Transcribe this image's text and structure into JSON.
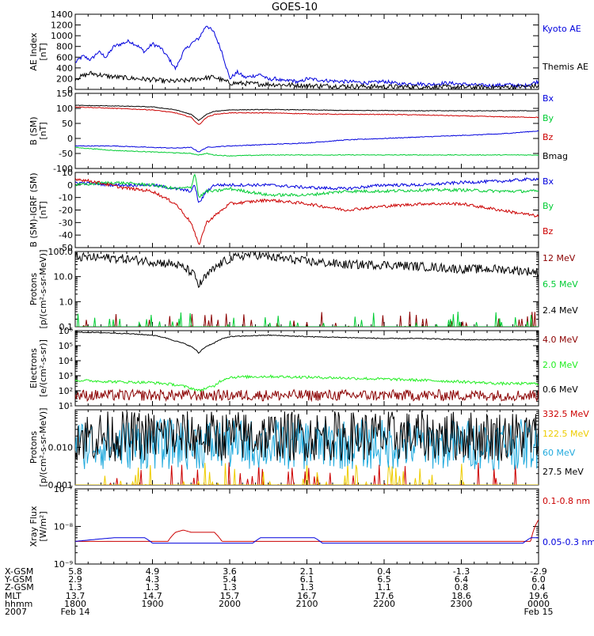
{
  "title": "GOES-10",
  "colors": {
    "black": "#000000",
    "blue": "#0000dd",
    "red": "#cc0000",
    "darkred": "#8b0000",
    "green": "#00cc33",
    "lime": "#22ee22",
    "yellow": "#eecc00",
    "cyan": "#22aadd"
  },
  "chart_data": [
    {
      "type": "line",
      "panel": "ae",
      "ylabel_lines": [
        "AE Index",
        "[nT]"
      ],
      "ylim": [
        0,
        1400
      ],
      "yticks": [
        0,
        200,
        400,
        600,
        800,
        1000,
        1200,
        1400
      ],
      "series": [
        {
          "name": "Kyoto AE",
          "color": "blue",
          "x": [
            18.0,
            18.1,
            18.2,
            18.3,
            18.4,
            18.5,
            18.6,
            18.7,
            18.8,
            18.9,
            19.0,
            19.1,
            19.2,
            19.3,
            19.4,
            19.5,
            19.6,
            19.7,
            19.8,
            19.9,
            20.0,
            20.1,
            20.2,
            20.3,
            20.4,
            20.5,
            20.6,
            20.7,
            20.8,
            20.9,
            21.0,
            21.2,
            21.4,
            21.6,
            21.8,
            22.0,
            22.2,
            22.4,
            22.6,
            22.8,
            23.0,
            23.2,
            23.4,
            23.6,
            23.8,
            24.0
          ],
          "y": [
            500,
            620,
            550,
            700,
            600,
            800,
            850,
            900,
            820,
            700,
            850,
            780,
            600,
            380,
            700,
            850,
            950,
            1200,
            1050,
            700,
            200,
            320,
            220,
            250,
            280,
            180,
            200,
            150,
            170,
            130,
            200,
            170,
            150,
            140,
            120,
            150,
            100,
            110,
            90,
            120,
            100,
            80,
            70,
            90,
            60,
            150
          ]
        },
        {
          "name": "Themis AE",
          "color": "black",
          "x": [
            18.0,
            18.2,
            18.4,
            18.6,
            18.8,
            19.0,
            19.2,
            19.4,
            19.6,
            19.8,
            20.0,
            20.2,
            20.4,
            20.6,
            20.8,
            21.0,
            21.5,
            22.0,
            22.5,
            23.0,
            23.5,
            24.0
          ],
          "y": [
            200,
            300,
            250,
            220,
            200,
            180,
            150,
            160,
            200,
            230,
            120,
            110,
            100,
            90,
            80,
            70,
            60,
            50,
            45,
            40,
            40,
            60
          ]
        }
      ],
      "legend": [
        "Kyoto AE",
        "Themis AE"
      ]
    },
    {
      "type": "line",
      "panel": "bsm",
      "ylabel_lines": [
        "B (SM)",
        "[nT]"
      ],
      "ylim": [
        -100,
        150
      ],
      "yticks": [
        -100,
        -50,
        0,
        50,
        100,
        150
      ],
      "series": [
        {
          "name": "Bx",
          "color": "blue",
          "x": [
            18.0,
            18.5,
            19.0,
            19.3,
            19.5,
            19.6,
            19.7,
            19.8,
            20.0,
            20.5,
            21.0,
            21.5,
            22.0,
            22.5,
            23.0,
            23.5,
            24.0
          ],
          "y": [
            -25,
            -25,
            -30,
            -32,
            -30,
            -45,
            -30,
            -28,
            -25,
            -20,
            -15,
            -5,
            0,
            5,
            10,
            15,
            25
          ]
        },
        {
          "name": "By",
          "color": "green",
          "x": [
            18.0,
            18.5,
            19.0,
            19.3,
            19.5,
            19.6,
            19.7,
            19.8,
            20.0,
            20.5,
            21.0,
            21.5,
            22.0,
            22.5,
            23.0,
            23.5,
            24.0
          ],
          "y": [
            -30,
            -40,
            -45,
            -48,
            -50,
            -55,
            -50,
            -55,
            -58,
            -55,
            -55,
            -55,
            -55,
            -55,
            -55,
            -55,
            -55
          ]
        },
        {
          "name": "Bz",
          "color": "red",
          "x": [
            18.0,
            18.5,
            19.0,
            19.3,
            19.5,
            19.6,
            19.7,
            19.8,
            20.0,
            20.5,
            21.0,
            21.5,
            22.0,
            22.5,
            23.0,
            23.5,
            24.0
          ],
          "y": [
            105,
            100,
            95,
            85,
            70,
            45,
            70,
            80,
            85,
            85,
            82,
            80,
            80,
            78,
            75,
            72,
            70
          ]
        },
        {
          "name": "Bmag",
          "color": "black",
          "x": [
            18.0,
            18.5,
            19.0,
            19.3,
            19.5,
            19.6,
            19.7,
            19.8,
            20.0,
            20.5,
            21.0,
            21.5,
            22.0,
            22.5,
            23.0,
            23.5,
            24.0
          ],
          "y": [
            110,
            108,
            105,
            95,
            80,
            60,
            80,
            90,
            95,
            96,
            95,
            93,
            93,
            92,
            92,
            92,
            92
          ]
        }
      ],
      "legend": [
        "Bx",
        "By",
        "Bz",
        "Bmag"
      ]
    },
    {
      "type": "line",
      "panel": "diff",
      "ylabel_lines": [
        "B (SM)-IGRF (SM)",
        "[nT]"
      ],
      "ylim": [
        -50,
        10
      ],
      "yticks": [
        -50,
        -40,
        -30,
        -20,
        -10,
        0,
        10
      ],
      "series": [
        {
          "name": "Bx",
          "color": "blue",
          "x": [
            18.0,
            18.5,
            19.0,
            19.3,
            19.5,
            19.55,
            19.6,
            19.7,
            19.8,
            20.0,
            20.5,
            21.0,
            21.5,
            22.0,
            22.5,
            23.0,
            23.5,
            24.0
          ],
          "y": [
            2,
            0,
            0,
            -3,
            -5,
            0,
            -15,
            -5,
            0,
            0,
            0,
            -2,
            -3,
            0,
            0,
            2,
            3,
            5
          ]
        },
        {
          "name": "By",
          "color": "green",
          "x": [
            18.0,
            18.5,
            19.0,
            19.3,
            19.5,
            19.55,
            19.6,
            19.7,
            19.8,
            20.0,
            20.5,
            21.0,
            21.5,
            22.0,
            22.5,
            23.0,
            23.5,
            24.0
          ],
          "y": [
            0,
            2,
            0,
            -3,
            -2,
            10,
            -10,
            -5,
            -5,
            -3,
            -8,
            -8,
            -5,
            -5,
            -4,
            -4,
            -5,
            -5
          ]
        },
        {
          "name": "Bz",
          "color": "red",
          "x": [
            18.0,
            18.3,
            18.6,
            19.0,
            19.3,
            19.5,
            19.6,
            19.7,
            19.8,
            20.0,
            20.5,
            21.0,
            21.5,
            22.0,
            22.5,
            23.0,
            23.5,
            24.0
          ],
          "y": [
            5,
            2,
            -2,
            -5,
            -15,
            -30,
            -48,
            -30,
            -25,
            -15,
            -12,
            -15,
            -20,
            -17,
            -15,
            -15,
            -20,
            -25
          ]
        }
      ],
      "legend": [
        "Bx",
        "By",
        "Bz"
      ]
    },
    {
      "type": "line",
      "panel": "protons_low",
      "scale": "log",
      "ylabel_lines": [
        "Protons",
        "[p/(cm²-s-sr-MeV)]"
      ],
      "ylim": [
        0.1,
        100
      ],
      "ytick_labels": [
        "0.1",
        "1.0",
        "10.0",
        "100.0"
      ],
      "yticks": [
        0.1,
        1,
        10,
        100
      ],
      "series": [
        {
          "name": "12 MeV",
          "color": "darkred",
          "x": [
            18.0,
            24.0
          ],
          "y": [
            0.1,
            0.1
          ]
        },
        {
          "name": "6.5 MeV",
          "color": "green",
          "x": [
            18.0,
            24.0
          ],
          "y": [
            0.1,
            0.1
          ]
        },
        {
          "name": "2.4 MeV",
          "color": "black",
          "x": [
            18.0,
            18.5,
            19.0,
            19.3,
            19.5,
            19.55,
            19.6,
            19.7,
            19.8,
            20.0,
            20.3,
            20.5,
            21.0,
            21.5,
            22.0,
            22.5,
            23.0,
            23.5,
            24.0
          ],
          "y": [
            60,
            55,
            40,
            30,
            15,
            10,
            4,
            10,
            20,
            50,
            80,
            60,
            40,
            30,
            30,
            25,
            20,
            20,
            15
          ]
        }
      ],
      "legend": [
        "12 MeV",
        "6.5 MeV",
        "2.4 MeV"
      ]
    },
    {
      "type": "line",
      "panel": "electrons",
      "scale": "log",
      "ylabel_lines": [
        "Electrons",
        "[e/(cm²-s-sr)]"
      ],
      "ylim": [
        10,
        1000000
      ],
      "ytick_labels": [
        "10¹",
        "10²",
        "10³",
        "10⁴",
        "10⁵",
        "10⁶"
      ],
      "yticks": [
        10,
        100,
        1000,
        10000,
        100000,
        1000000
      ],
      "series": [
        {
          "name": "4.0 MeV",
          "color": "darkred",
          "x": [
            18.0,
            19.0,
            20.0,
            21.0,
            22.0,
            23.0,
            24.0
          ],
          "y": [
            50,
            50,
            50,
            50,
            50,
            50,
            50
          ]
        },
        {
          "name": "2.0 MeV",
          "color": "lime",
          "x": [
            18.0,
            18.5,
            19.0,
            19.3,
            19.6,
            19.8,
            20.0,
            20.5,
            21.0,
            21.5,
            22.0,
            22.5,
            23.0,
            23.5,
            24.0
          ],
          "y": [
            500,
            400,
            350,
            250,
            100,
            200,
            800,
            900,
            800,
            700,
            600,
            500,
            400,
            300,
            300
          ]
        },
        {
          "name": "0.6 MeV",
          "color": "black",
          "x": [
            18.0,
            18.5,
            19.0,
            19.3,
            19.6,
            19.8,
            20.0,
            20.5,
            21.0,
            21.5,
            22.0,
            22.5,
            23.0,
            23.5,
            24.0
          ],
          "y": [
            800000,
            700000,
            500000,
            200000,
            30000,
            150000,
            400000,
            500000,
            400000,
            350000,
            300000,
            300000,
            250000,
            250000,
            250000
          ]
        }
      ],
      "legend": [
        "4.0 MeV",
        "2.0 MeV",
        "0.6 MeV"
      ]
    },
    {
      "type": "line",
      "panel": "protons_high",
      "scale": "log",
      "ylabel_lines": [
        "Protons",
        "[p/(cm²-s-sr-MeV)]"
      ],
      "ylim": [
        0.001,
        0.1
      ],
      "ytick_labels": [
        "0.001",
        "0.010"
      ],
      "yticks": [
        0.001,
        0.01
      ],
      "series": [
        {
          "name": "332.5 MeV",
          "color": "red",
          "x": [
            18.0,
            24.0
          ],
          "y": [
            0.001,
            0.001
          ]
        },
        {
          "name": "122.5 MeV",
          "color": "yellow",
          "x": [
            18.0,
            24.0
          ],
          "y": [
            0.001,
            0.001
          ]
        },
        {
          "name": "60 MeV",
          "color": "cyan",
          "x": [
            18.0,
            24.0
          ],
          "y": [
            0.012,
            0.012
          ]
        },
        {
          "name": "27.5 MeV",
          "color": "black",
          "x": [
            18.0,
            24.0
          ],
          "y": [
            0.02,
            0.02
          ]
        }
      ],
      "legend": [
        "332.5 MeV",
        "122.5 MeV",
        "60 MeV",
        "27.5 MeV"
      ]
    },
    {
      "type": "line",
      "panel": "xray",
      "scale": "log",
      "ylabel_lines": [
        "Xray Flux",
        "[W/m²]"
      ],
      "ylim": [
        1e-09,
        1e-07
      ],
      "ytick_labels": [
        "10⁻⁹",
        "10⁻⁸",
        "10⁻⁷"
      ],
      "yticks": [
        1e-09,
        1e-08,
        1e-07
      ],
      "series": [
        {
          "name": "0.1-0.8 nm",
          "color": "red",
          "x": [
            18.0,
            18.5,
            19.0,
            19.2,
            19.3,
            19.4,
            19.5,
            19.8,
            19.9,
            20.0,
            21.0,
            22.0,
            23.0,
            23.5,
            23.9,
            24.0
          ],
          "y": [
            4e-09,
            4e-09,
            4e-09,
            4e-09,
            7e-09,
            8e-09,
            7e-09,
            7e-09,
            4e-09,
            4e-09,
            4e-09,
            4e-09,
            4e-09,
            4e-09,
            4e-09,
            1.5e-08
          ]
        },
        {
          "name": "0.05-0.3 nm",
          "color": "blue",
          "x": [
            18.0,
            18.5,
            18.9,
            19.0,
            19.5,
            19.9,
            20.0,
            20.3,
            20.4,
            21.0,
            21.1,
            21.2,
            22.0,
            23.0,
            23.8,
            23.9,
            24.0
          ],
          "y": [
            4e-09,
            5e-09,
            5e-09,
            3.6e-09,
            3.6e-09,
            3.6e-09,
            3.6e-09,
            3.6e-09,
            5e-09,
            5e-09,
            5e-09,
            3.6e-09,
            3.6e-09,
            3.6e-09,
            3.6e-09,
            5e-09,
            5e-09
          ]
        }
      ],
      "legend": [
        "0.1-0.8 nm",
        "0.05-0.3 nm"
      ]
    }
  ],
  "x_axis": {
    "ticks": [
      18,
      19,
      20,
      21,
      22,
      23,
      24
    ],
    "rows": [
      {
        "label": "X-GSM",
        "values": [
          "5.8",
          "4.9",
          "3.6",
          "2.1",
          "0.4",
          "-1.3",
          "-2.9"
        ]
      },
      {
        "label": "Y-GSM",
        "values": [
          "2.9",
          "4.3",
          "5.4",
          "6.1",
          "6.5",
          "6.4",
          "6.0"
        ]
      },
      {
        "label": "Z-GSM",
        "values": [
          "1.3",
          "1.3",
          "1.3",
          "1.3",
          "1.1",
          "0.8",
          "0.4"
        ]
      },
      {
        "label": "MLT",
        "values": [
          "13.7",
          "14.7",
          "15.7",
          "16.7",
          "17.6",
          "18.6",
          "19.6"
        ]
      },
      {
        "label": "hhmm",
        "values": [
          "1800",
          "1900",
          "2000",
          "2100",
          "2200",
          "2300",
          "0000"
        ]
      }
    ],
    "year": "2007",
    "date_start": "Feb 14",
    "date_end": "Feb 15"
  }
}
